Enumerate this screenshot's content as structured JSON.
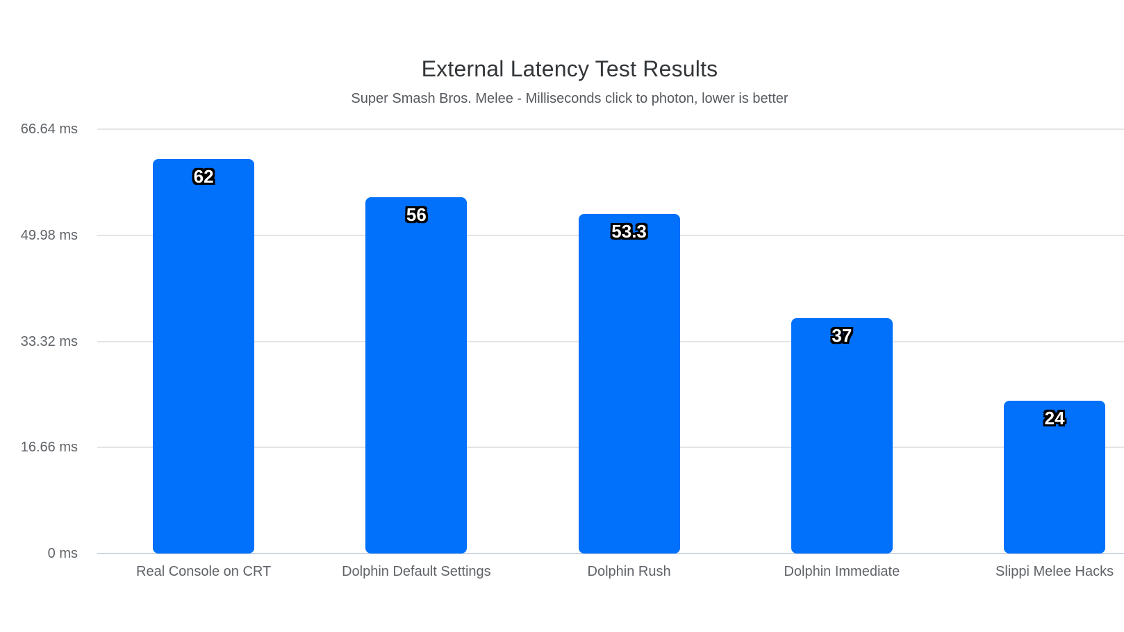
{
  "chart_data": {
    "type": "bar",
    "title": "External Latency Test Results",
    "subtitle": "Super Smash Bros. Melee - Milliseconds click to photon, lower is better",
    "categories": [
      "Real Console on CRT",
      "Dolphin Default Settings",
      "Dolphin Rush",
      "Dolphin Immediate",
      "Slippi Melee Hacks"
    ],
    "values": [
      62,
      56,
      53.3,
      37,
      24
    ],
    "value_labels": [
      "62",
      "56",
      "53.3",
      "37",
      "24"
    ],
    "xlabel": "",
    "ylabel": "",
    "unit": "ms",
    "ylim": [
      0,
      66.64
    ],
    "yticks": [
      {
        "value": 0,
        "label": "0 ms"
      },
      {
        "value": 16.66,
        "label": "16.66 ms"
      },
      {
        "value": 33.32,
        "label": "33.32 ms"
      },
      {
        "value": 49.98,
        "label": "49.98 ms"
      },
      {
        "value": 66.64,
        "label": "66.64 ms"
      }
    ],
    "grid": true,
    "legend_position": "none",
    "colors": {
      "bar": "#0170fa",
      "grid": "#e4e4e4",
      "axis_line": "#ccd5e2",
      "title": "#333639",
      "subtitle": "#55595e",
      "tick_label": "#5f6368",
      "value_label_fill": "#ffffff",
      "value_label_outline": "#000000",
      "background": "#ffffff"
    }
  }
}
